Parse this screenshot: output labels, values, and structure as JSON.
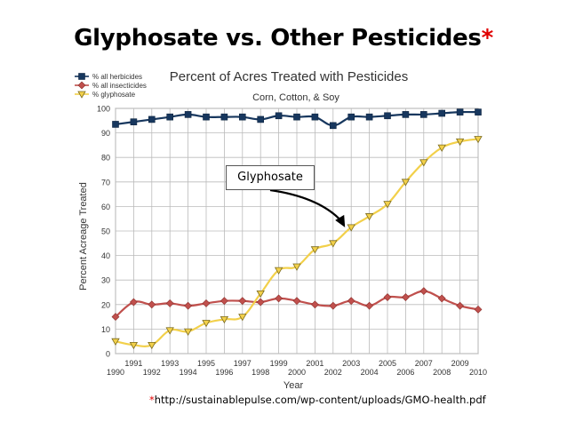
{
  "slide": {
    "title": "Glyphosate vs. Other Pesticides",
    "title_mark": "*",
    "footnote_mark": "*",
    "footnote": "http://sustainablepulse.com/wp-content/uploads/GMO-health.pdf"
  },
  "chart_data": {
    "type": "line",
    "title": "Percent of Acres Treated with Pesticides",
    "subtitle": "Corn, Cotton, & Soy",
    "xlabel": "Year",
    "ylabel": "Percent Acreage Treated",
    "x": [
      1990,
      1991,
      1992,
      1993,
      1994,
      1995,
      1996,
      1997,
      1998,
      1999,
      2000,
      2001,
      2002,
      2003,
      2004,
      2005,
      2006,
      2007,
      2008,
      2009,
      2010
    ],
    "xlim": [
      1990,
      2010
    ],
    "ylim": [
      0,
      100
    ],
    "yticks": [
      0,
      10,
      20,
      30,
      40,
      50,
      60,
      70,
      80,
      90,
      100
    ],
    "grid": true,
    "legend_position": "top-left",
    "series": [
      {
        "name": "% all herbicides",
        "color": "#17375e",
        "marker": "square",
        "values": [
          93.5,
          94.5,
          95.5,
          96.5,
          97.5,
          96.5,
          96.5,
          96.5,
          95.5,
          97,
          96.5,
          96.5,
          93,
          96.5,
          96.5,
          97,
          97.5,
          97.5,
          98,
          98.5,
          98.5
        ]
      },
      {
        "name": "% all insecticides",
        "color": "#c0504d",
        "marker": "diamond",
        "values": [
          15,
          21,
          20,
          20.5,
          19.5,
          20.5,
          21.5,
          21.5,
          21,
          22.5,
          21.5,
          20,
          19.5,
          21.5,
          19.5,
          23,
          23,
          25.5,
          22.5,
          19.5,
          18
        ]
      },
      {
        "name": "% glyphosate",
        "color": "#f2d04a",
        "marker": "triangle-down",
        "values": [
          5,
          3.5,
          3.5,
          9.5,
          9,
          12.5,
          14,
          15,
          24.5,
          34,
          35.5,
          42.5,
          45,
          51.5,
          56,
          61,
          70,
          78,
          84,
          86.5,
          87.5
        ]
      }
    ],
    "annotation": {
      "text": "Glyphosate",
      "points_to_year": 2003,
      "points_to_series": "% glyphosate"
    }
  }
}
